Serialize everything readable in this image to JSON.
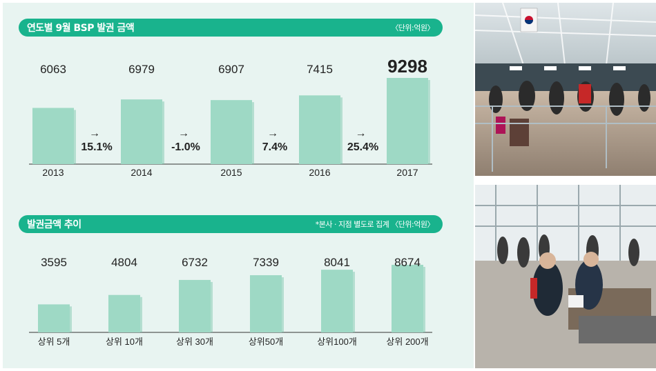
{
  "colors": {
    "accent": "#19b38d",
    "bar": "#9ed9c5",
    "bar_shadow": "#7fc8b0",
    "panel_bg": "#e8f4f1"
  },
  "chart1": {
    "title": "연도별 9월 BSP 발권 금액",
    "note": "〈단위:억원〉"
  },
  "chart2": {
    "title": "발권금액 추이",
    "note": "*본사 · 지점 별도로 집계 〈단위:억원〉"
  },
  "chart_data": [
    {
      "type": "bar",
      "title": "연도별 9월 BSP 발권 금액",
      "unit": "〈단위:억원〉",
      "categories": [
        "2013",
        "2014",
        "2015",
        "2016",
        "2017"
      ],
      "values": [
        6063,
        6979,
        6907,
        7415,
        9298
      ],
      "value_labels": [
        "6063",
        "6979",
        "6907",
        "7415",
        "9298"
      ],
      "growth_arrow": "→",
      "growth": [
        "15.1%",
        "-1.0%",
        "7.4%",
        "25.4%"
      ],
      "highlight_index": 4
    },
    {
      "type": "bar",
      "title": "발권금액 추이",
      "unit": "*본사 · 지점 별도로 집계 〈단위:억원〉",
      "categories": [
        "상위 5개",
        "상위 10개",
        "상위 30개",
        "상위50개",
        "상위100개",
        "상위 200개"
      ],
      "values": [
        3595,
        4804,
        6732,
        7339,
        8041,
        8674
      ],
      "value_labels": [
        "3595",
        "4804",
        "6732",
        "7339",
        "8041",
        "8674"
      ]
    }
  ]
}
